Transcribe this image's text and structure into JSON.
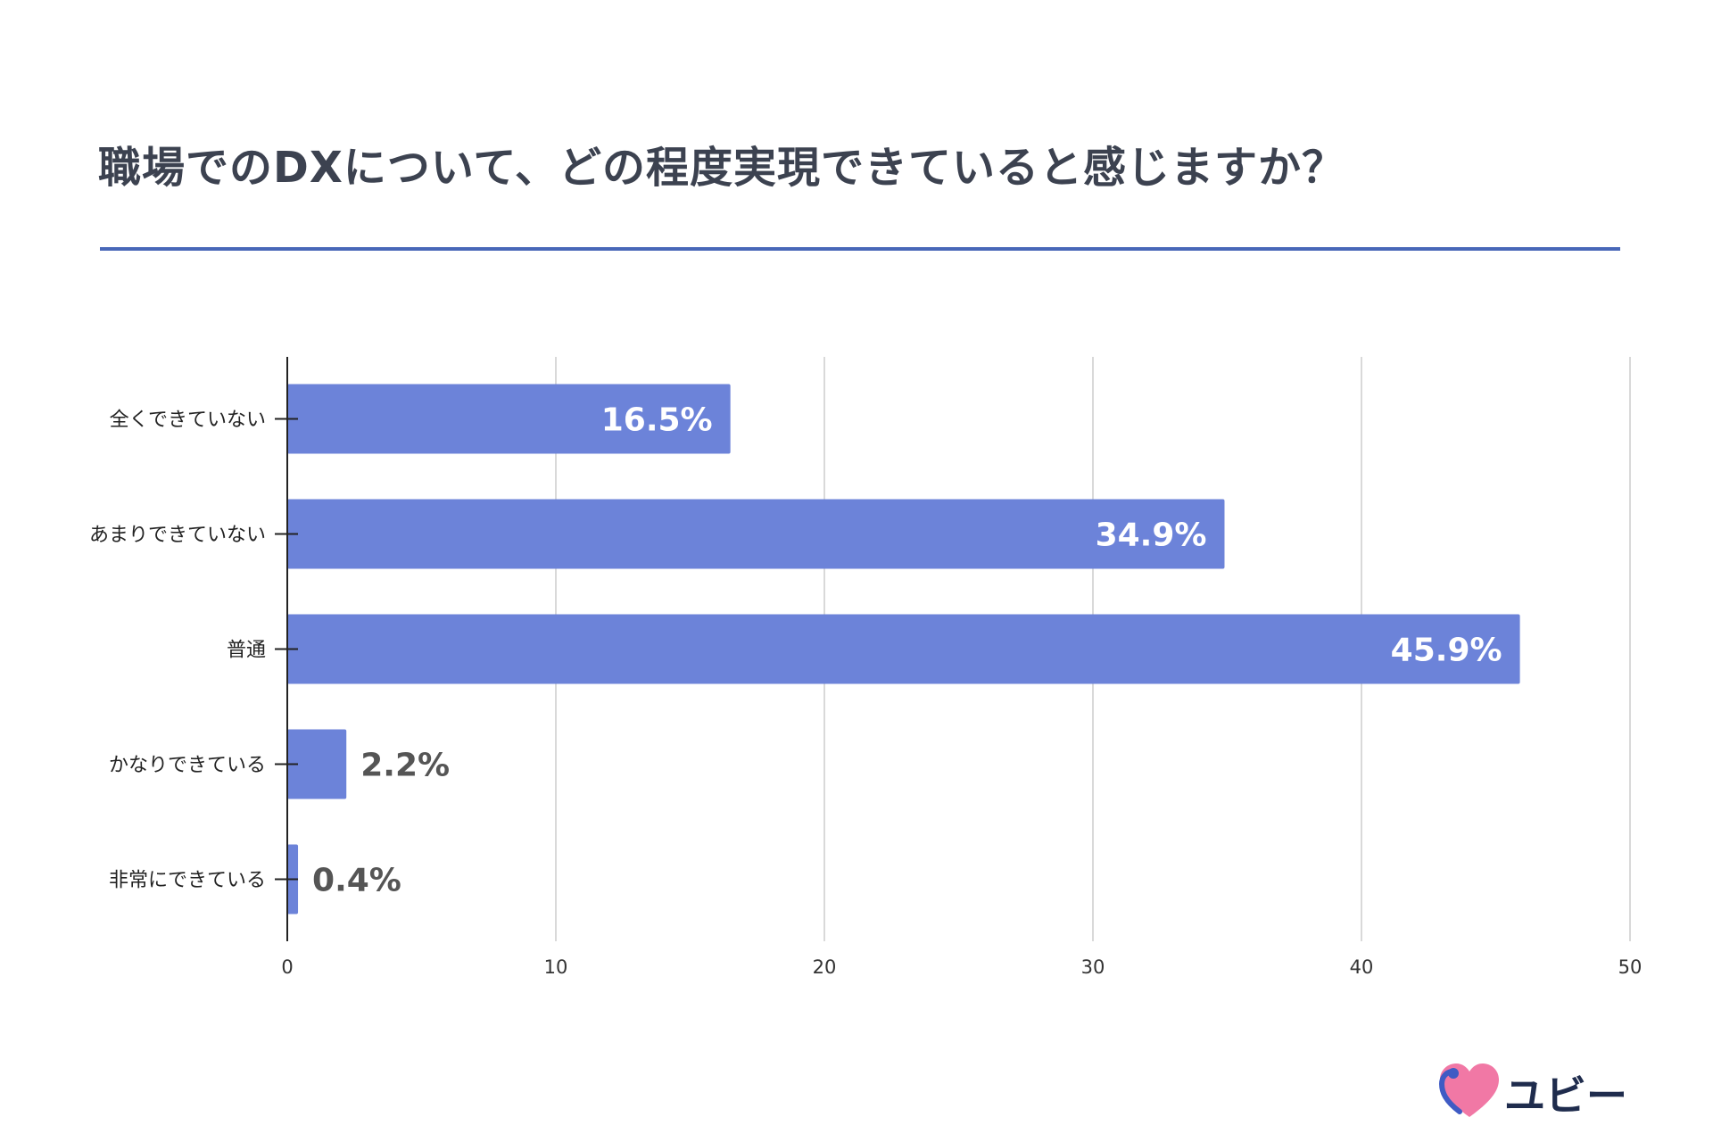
{
  "title": "職場でのDXについて、どの程度実現できていると感じますか？",
  "logo": {
    "text": "ユビー",
    "icon": "heart-logo-icon"
  },
  "colors": {
    "bar": "#6c83d9",
    "title": "#3c4250",
    "rule": "#4867b8",
    "grid": "#d9d9d9",
    "label_inside": "#ffffff",
    "label_outside": "#555555"
  },
  "chart_data": {
    "type": "bar",
    "orientation": "horizontal",
    "title": "",
    "xlabel": "",
    "ylabel": "",
    "categories": [
      "全くできていない",
      "あまりできていない",
      "普通",
      "かなりできている",
      "非常にできている"
    ],
    "values": [
      16.5,
      34.9,
      45.9,
      2.2,
      0.4
    ],
    "data_labels": [
      "16.5%",
      "34.9%",
      "45.9%",
      "2.2%",
      "0.4%"
    ],
    "xlim": [
      0,
      50
    ],
    "xticks": [
      0,
      10,
      20,
      30,
      40,
      50
    ],
    "grid": true,
    "legend": "none"
  }
}
